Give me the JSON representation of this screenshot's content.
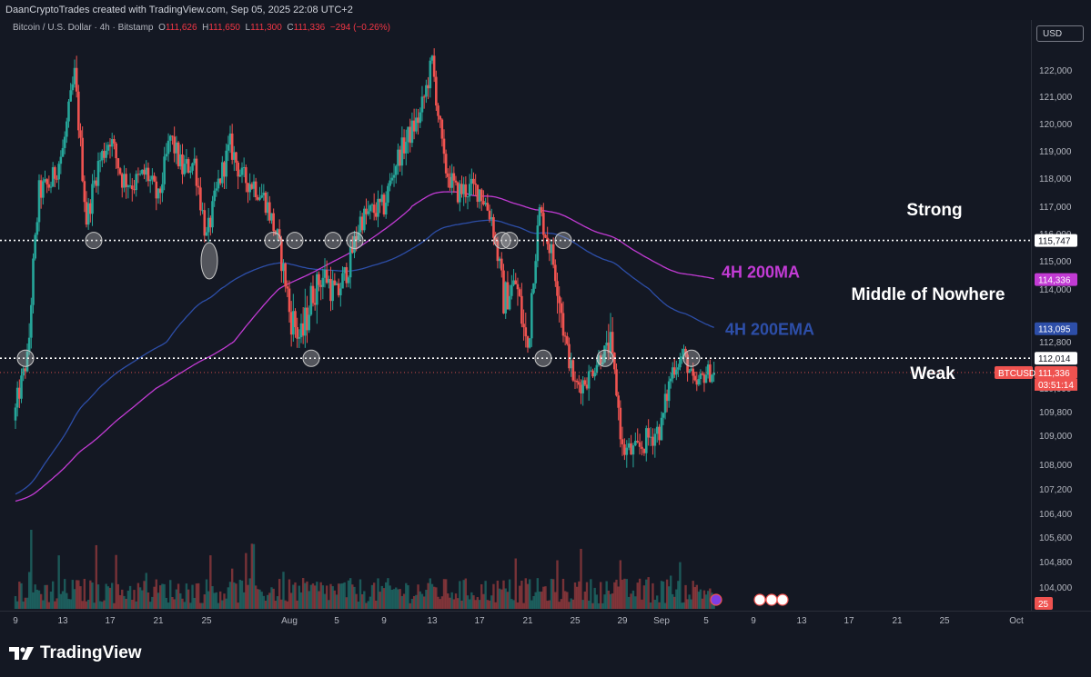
{
  "header": {
    "credit": "DaanCryptoTrades created with TradingView.com, Sep 05, 2025 22:08 UTC+2"
  },
  "legend": {
    "symbol": "Bitcoin / U.S. Dollar · 4h · Bitstamp",
    "open_label": "O",
    "open": "111,626",
    "high_label": "H",
    "high": "111,650",
    "low_label": "L",
    "low": "111,300",
    "close_label": "C",
    "close": "111,336",
    "change": "−294 (−0.26%)"
  },
  "currency": "USD",
  "footer": {
    "brand": "TradingView"
  },
  "colors": {
    "background": "#141823",
    "up": "#26a69a",
    "down": "#ef5350",
    "ma": "#c23bd4",
    "ema": "#2d4ea8",
    "annotation": "#ffffff"
  },
  "chart_data": {
    "type": "candlestick",
    "symbol": "BTCUSD",
    "timeframe": "4h",
    "ylim": [
      103500,
      123500
    ],
    "y_ticks": [
      "122,000",
      "121,000",
      "120,000",
      "119,000",
      "118,000",
      "117,000",
      "116,000",
      "115,000",
      "114,000",
      "112,800",
      "110,600",
      "109,800",
      "109,000",
      "108,000",
      "107,200",
      "106,400",
      "105,600",
      "104,800",
      "104,000"
    ],
    "y_tick_values": [
      122000,
      121000,
      120000,
      119000,
      118000,
      117000,
      116000,
      115000,
      114000,
      112800,
      110600,
      109800,
      109000,
      108000,
      107200,
      106400,
      105600,
      104800,
      104000
    ],
    "x_ticks": [
      "9",
      "13",
      "17",
      "21",
      "25",
      "Aug",
      "5",
      "9",
      "13",
      "17",
      "21",
      "25",
      "29",
      "Sep",
      "5",
      "9",
      "13",
      "17",
      "21",
      "25",
      "Oct"
    ],
    "x_tick_dates": [
      "2025-07-09",
      "2025-07-13",
      "2025-07-17",
      "2025-07-21",
      "2025-07-25",
      "2025-08-01",
      "2025-08-05",
      "2025-08-09",
      "2025-08-13",
      "2025-08-17",
      "2025-08-21",
      "2025-08-25",
      "2025-08-29",
      "2025-09-01",
      "2025-09-05",
      "2025-09-09",
      "2025-09-13",
      "2025-09-17",
      "2025-09-21",
      "2025-09-25",
      "2025-10-01"
    ],
    "closes": [
      {
        "date": "2025-07-09",
        "close": 109800
      },
      {
        "date": "2025-07-10",
        "close": 112000
      },
      {
        "date": "2025-07-11",
        "close": 117500
      },
      {
        "date": "2025-07-12",
        "close": 117800
      },
      {
        "date": "2025-07-13",
        "close": 119000
      },
      {
        "date": "2025-07-14",
        "close": 121800
      },
      {
        "date": "2025-07-15",
        "close": 116500
      },
      {
        "date": "2025-07-16",
        "close": 118500
      },
      {
        "date": "2025-07-17",
        "close": 119500
      },
      {
        "date": "2025-07-18",
        "close": 118000
      },
      {
        "date": "2025-07-19",
        "close": 117800
      },
      {
        "date": "2025-07-20",
        "close": 118200
      },
      {
        "date": "2025-07-21",
        "close": 117200
      },
      {
        "date": "2025-07-22",
        "close": 119500
      },
      {
        "date": "2025-07-23",
        "close": 118300
      },
      {
        "date": "2025-07-24",
        "close": 118600
      },
      {
        "date": "2025-07-25",
        "close": 115800
      },
      {
        "date": "2025-07-26",
        "close": 117800
      },
      {
        "date": "2025-07-27",
        "close": 119200
      },
      {
        "date": "2025-07-28",
        "close": 118000
      },
      {
        "date": "2025-07-29",
        "close": 117800
      },
      {
        "date": "2025-07-30",
        "close": 117200
      },
      {
        "date": "2025-07-31",
        "close": 115800
      },
      {
        "date": "2025-08-01",
        "close": 113500
      },
      {
        "date": "2025-08-02",
        "close": 112800
      },
      {
        "date": "2025-08-03",
        "close": 114000
      },
      {
        "date": "2025-08-04",
        "close": 114500
      },
      {
        "date": "2025-08-05",
        "close": 113800
      },
      {
        "date": "2025-08-06",
        "close": 114800
      },
      {
        "date": "2025-08-07",
        "close": 116500
      },
      {
        "date": "2025-08-08",
        "close": 116800
      },
      {
        "date": "2025-08-09",
        "close": 117000
      },
      {
        "date": "2025-08-10",
        "close": 118600
      },
      {
        "date": "2025-08-11",
        "close": 119500
      },
      {
        "date": "2025-08-12",
        "close": 120300
      },
      {
        "date": "2025-08-13",
        "close": 122300
      },
      {
        "date": "2025-08-14",
        "close": 118500
      },
      {
        "date": "2025-08-15",
        "close": 117500
      },
      {
        "date": "2025-08-16",
        "close": 117600
      },
      {
        "date": "2025-08-17",
        "close": 117600
      },
      {
        "date": "2025-08-18",
        "close": 116600
      },
      {
        "date": "2025-08-19",
        "close": 113800
      },
      {
        "date": "2025-08-20",
        "close": 114200
      },
      {
        "date": "2025-08-21",
        "close": 112500
      },
      {
        "date": "2025-08-22",
        "close": 116800
      },
      {
        "date": "2025-08-23",
        "close": 115300
      },
      {
        "date": "2025-08-24",
        "close": 113200
      },
      {
        "date": "2025-08-25",
        "close": 110700
      },
      {
        "date": "2025-08-26",
        "close": 111000
      },
      {
        "date": "2025-08-27",
        "close": 112000
      },
      {
        "date": "2025-08-28",
        "close": 112600
      },
      {
        "date": "2025-08-29",
        "close": 108500
      },
      {
        "date": "2025-08-30",
        "close": 108400
      },
      {
        "date": "2025-08-31",
        "close": 108900
      },
      {
        "date": "2025-09-01",
        "close": 109300
      },
      {
        "date": "2025-09-02",
        "close": 111500
      },
      {
        "date": "2025-09-03",
        "close": 112200
      },
      {
        "date": "2025-09-04",
        "close": 110600
      },
      {
        "date": "2025-09-05",
        "close": 111336
      }
    ],
    "series": [
      {
        "name": "4H 200MA",
        "color": "#c23bd4",
        "label": "114,336"
      },
      {
        "name": "4H 200EMA",
        "color": "#2d4ea8",
        "label": "113,095"
      }
    ],
    "levels": [
      {
        "value": 115747,
        "label": "115,747"
      },
      {
        "value": 112014,
        "label": "112,014"
      }
    ],
    "current": {
      "value": 111336,
      "symbol_label": "BTCUSD",
      "price_label": "111,336",
      "countdown": "03:51:14"
    },
    "annotations": [
      "Strong",
      "Middle of Nowhere",
      "Weak"
    ],
    "volume_axis_label": "25"
  }
}
